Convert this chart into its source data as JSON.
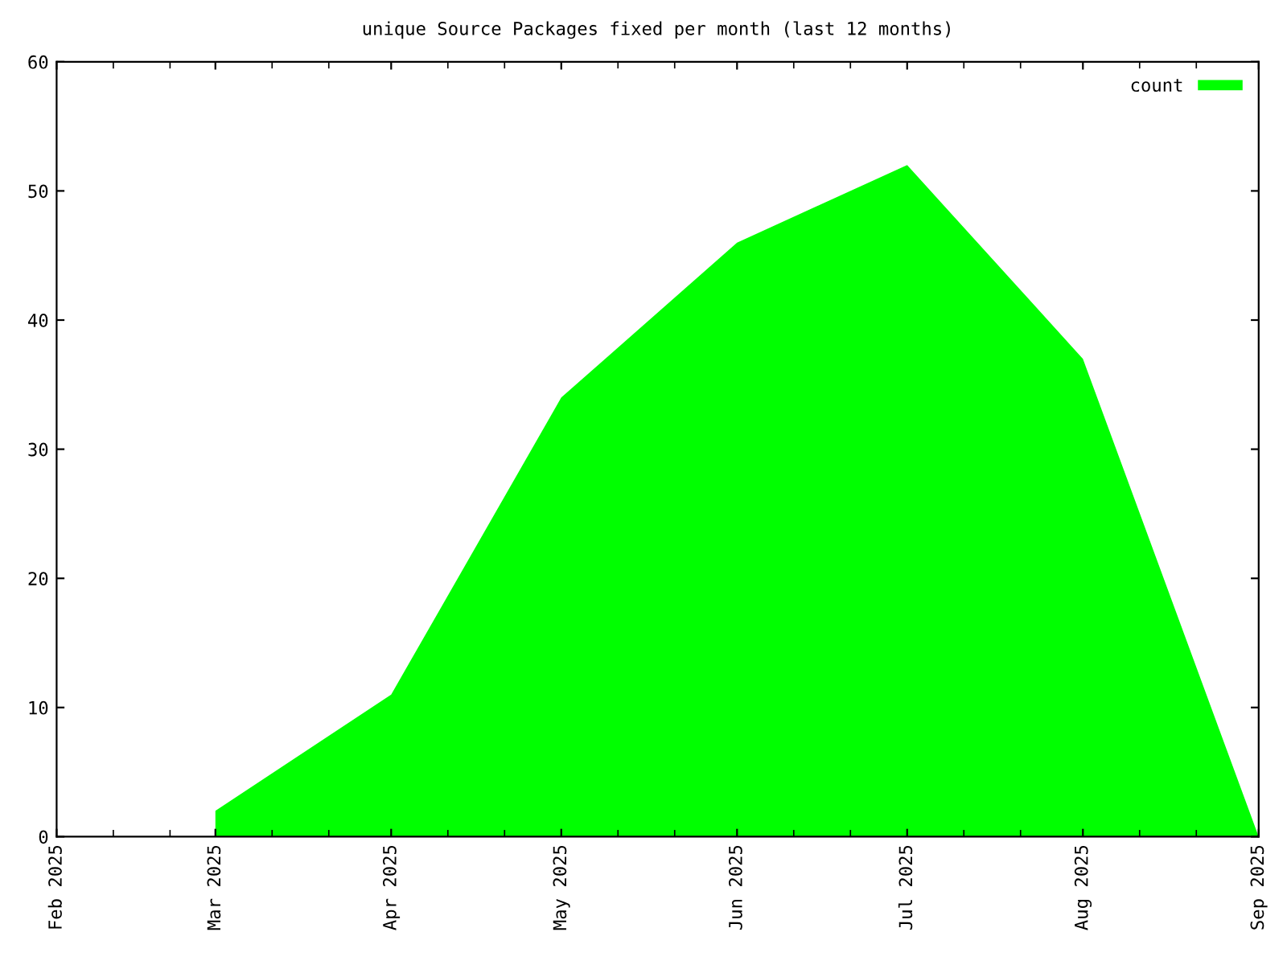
{
  "chart_data": {
    "type": "area",
    "title": "unique Source Packages fixed per month (last 12 months)",
    "x": [
      "2025-03-01",
      "2025-04-01",
      "2025-05-01",
      "2025-06-01",
      "2025-07-01",
      "2025-08-01",
      "2025-09-01"
    ],
    "series": [
      {
        "name": "count",
        "color": "#00ff00",
        "values": [
          2,
          11,
          34,
          46,
          52,
          37,
          0
        ]
      }
    ],
    "xlim": [
      "2025-02-01",
      "2025-09-01"
    ],
    "xticks": [
      {
        "value": "2025-02-01",
        "label": "Feb 2025"
      },
      {
        "value": "2025-03-01",
        "label": "Mar 2025"
      },
      {
        "value": "2025-04-01",
        "label": "Apr 2025"
      },
      {
        "value": "2025-05-01",
        "label": "May 2025"
      },
      {
        "value": "2025-06-01",
        "label": "Jun 2025"
      },
      {
        "value": "2025-07-01",
        "label": "Jul 2025"
      },
      {
        "value": "2025-08-01",
        "label": "Aug 2025"
      },
      {
        "value": "2025-09-01",
        "label": "Sep 2025"
      }
    ],
    "ylim": [
      0,
      60
    ],
    "yticks": [
      0,
      10,
      20,
      30,
      40,
      50,
      60
    ],
    "grid": false,
    "legend": "top right"
  }
}
